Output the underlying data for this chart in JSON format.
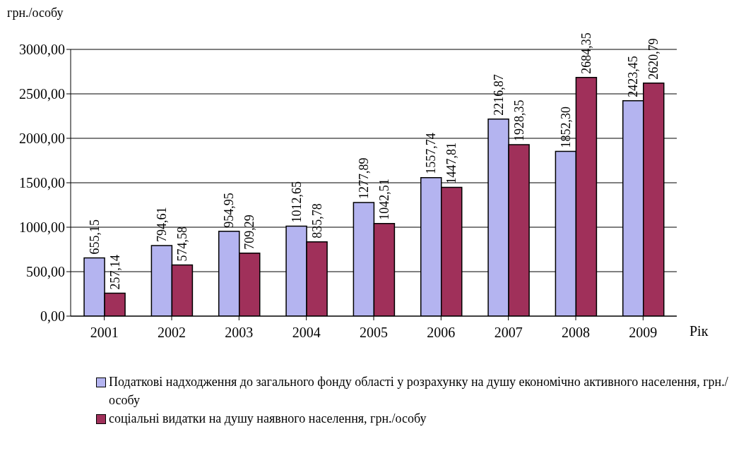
{
  "chart_data": {
    "type": "bar",
    "ylabel": "грн./особу",
    "xlabel": "Рік",
    "categories": [
      "2001",
      "2002",
      "2003",
      "2004",
      "2005",
      "2006",
      "2007",
      "2008",
      "2009"
    ],
    "series": [
      {
        "name": "Податкові надходження до загального фонду області у розрахунку на душу економічно активного населення, грн./особу",
        "color": "#b4b4f0",
        "values": [
          655.15,
          794.61,
          954.95,
          1012.65,
          1277.89,
          1557.74,
          2216.87,
          1852.3,
          2423.45
        ],
        "value_labels": [
          "655,15",
          "794,61",
          "954,95",
          "1012,65",
          "1277,89",
          "1557,74",
          "2216,87",
          "1852,30",
          "2423,45"
        ]
      },
      {
        "name": "соціальні видатки на душу наявного населення, грн./особу",
        "color": "#a0305a",
        "values": [
          257.14,
          574.58,
          709.29,
          835.78,
          1042.51,
          1447.81,
          1928.35,
          2684.35,
          2620.79
        ],
        "value_labels": [
          "257,14",
          "574,58",
          "709,29",
          "835,78",
          "1042,51",
          "1447,81",
          "1928,35",
          "2684,35",
          "2620,79"
        ]
      }
    ],
    "ylim": [
      0,
      3000
    ],
    "yticks": [
      {
        "value": 0,
        "label": "0,00"
      },
      {
        "value": 500,
        "label": "500,00"
      },
      {
        "value": 1000,
        "label": "1000,00"
      },
      {
        "value": 1500,
        "label": "1500,00"
      },
      {
        "value": 2000,
        "label": "2000,00"
      },
      {
        "value": 2500,
        "label": "2500,00"
      },
      {
        "value": 3000,
        "label": "3000,00"
      }
    ],
    "grid": "y",
    "legend": "bottom"
  }
}
